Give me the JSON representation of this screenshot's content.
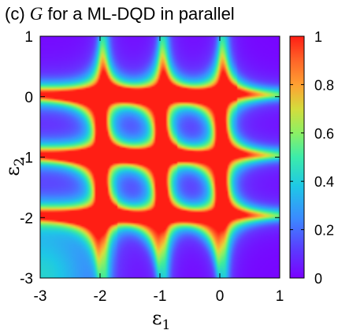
{
  "chart_data": {
    "type": "heatmap",
    "title": {
      "prefix": "(c) ",
      "variable": "G",
      "suffix": " for a ML-DQD in parallel"
    },
    "xlabel": {
      "symbol": "ε",
      "subscript": "1"
    },
    "ylabel": {
      "symbol": "ε",
      "subscript": "2"
    },
    "xlim": [
      -3,
      1
    ],
    "ylim": [
      -3,
      1
    ],
    "x_ticks": [
      "-3",
      "-2",
      "-1",
      "0",
      "1"
    ],
    "y_ticks": [
      "-3",
      "-2",
      "-1",
      "0",
      "1"
    ],
    "x_tick_values": [
      -3,
      -2,
      -1,
      0,
      1
    ],
    "y_tick_values": [
      -3,
      -2,
      -1,
      0,
      1
    ],
    "colorbar": {
      "range": [
        0,
        1
      ],
      "ticks": [
        "0",
        "0.2",
        "0.4",
        "0.6",
        "0.8",
        "1"
      ],
      "tick_values": [
        0,
        0.2,
        0.4,
        0.6,
        0.8,
        1
      ],
      "colormap": [
        "#7a00ff",
        "#6437ff",
        "#3c8cff",
        "#1ec8e6",
        "#3ceba0",
        "#8cf064",
        "#dcdc3c",
        "#ffa032",
        "#ff6428",
        "#ff1e14"
      ]
    },
    "resonance_lines": {
      "epsilon1": [
        -2.0,
        -1.0,
        0.0
      ],
      "epsilon2": [
        -2.0,
        -1.0,
        0.0
      ]
    },
    "grid": false,
    "legend": "colorbar-right"
  }
}
